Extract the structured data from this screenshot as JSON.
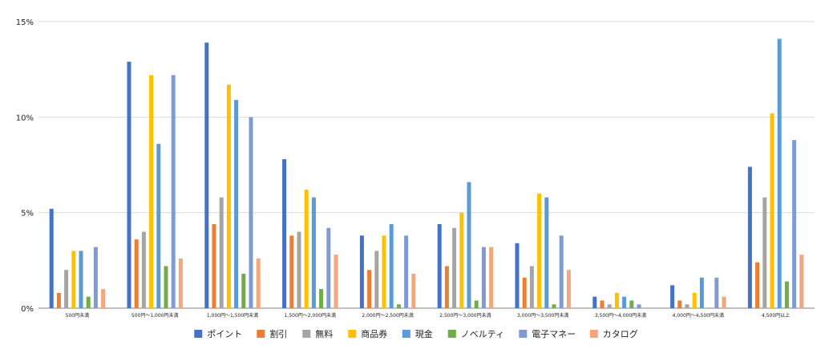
{
  "chart_data": {
    "type": "bar",
    "title": "",
    "xlabel": "",
    "ylabel": "",
    "ylim": [
      0,
      15
    ],
    "yticks": [
      "0%",
      "5%",
      "10%",
      "15%"
    ],
    "grid": true,
    "legend_position": "bottom",
    "categories": [
      "500円未満",
      "500円～1,000円未満",
      "1,000円～1,500円未満",
      "1,500円～2,000円未満",
      "2,000円～2,500円未満",
      "2,500円～3,000円未満",
      "3,000円～3,500円未満",
      "3,500円～4,000円未満",
      "4,000円～4,500円未満",
      "4,500円以上"
    ],
    "series": [
      {
        "name": "ポイント",
        "color": "#4472C4",
        "values": [
          5.2,
          12.9,
          13.9,
          7.8,
          3.8,
          4.4,
          3.4,
          0.6,
          1.2,
          7.4
        ]
      },
      {
        "name": "割引",
        "color": "#ED7D31",
        "values": [
          0.8,
          3.6,
          4.4,
          3.8,
          2.0,
          2.2,
          1.6,
          0.4,
          0.4,
          2.4
        ]
      },
      {
        "name": "無料",
        "color": "#A5A5A5",
        "values": [
          2.0,
          4.0,
          5.8,
          4.0,
          3.0,
          4.2,
          2.2,
          0.2,
          0.2,
          5.8
        ]
      },
      {
        "name": "商品券",
        "color": "#FFC000",
        "values": [
          3.0,
          12.2,
          11.7,
          6.2,
          3.8,
          5.0,
          6.0,
          0.8,
          0.8,
          10.2
        ]
      },
      {
        "name": "現金",
        "color": "#5B9BD5",
        "values": [
          3.0,
          8.6,
          10.9,
          5.8,
          4.4,
          6.6,
          5.8,
          0.6,
          1.6,
          14.1
        ]
      },
      {
        "name": "ノベルティ",
        "color": "#70AD47",
        "values": [
          0.6,
          2.2,
          1.8,
          1.0,
          0.2,
          0.4,
          0.2,
          0.4,
          0.0,
          1.4
        ]
      },
      {
        "name": "電子マネー",
        "color": "#7F9BD3",
        "values": [
          3.2,
          12.2,
          10.0,
          4.2,
          3.8,
          3.2,
          3.8,
          0.2,
          1.6,
          8.8
        ]
      },
      {
        "name": "カタログ",
        "color": "#F4A77C",
        "values": [
          1.0,
          2.6,
          2.6,
          2.8,
          1.8,
          3.2,
          2.0,
          0.0,
          0.6,
          2.8
        ]
      }
    ]
  }
}
